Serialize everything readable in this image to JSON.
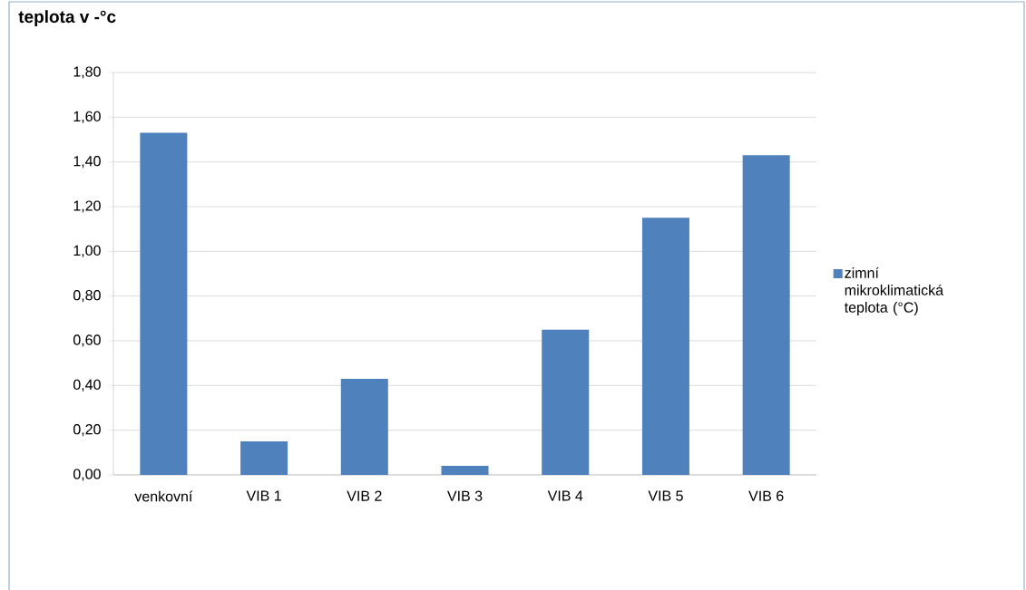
{
  "chart_data": {
    "type": "bar",
    "title": "**teplota v  -°c**",
    "categories": [
      "venkovní",
      "VIB 1",
      "VIB 2",
      "VIB 3",
      "VIB 4",
      "VIB 5",
      "VIB 6"
    ],
    "series": [
      {
        "name": "zimní mikroklimatická teplota (°C)",
        "color": "#4f81bd",
        "values": [
          1.53,
          0.15,
          0.43,
          0.04,
          0.65,
          1.15,
          1.43
        ]
      }
    ],
    "ylim": [
      0,
      1.8
    ],
    "yticks": [
      {
        "value": 0,
        "label": "0,00"
      },
      {
        "value": 0.2,
        "label": "0,20"
      },
      {
        "value": 0.4,
        "label": "0,40"
      },
      {
        "value": 0.6,
        "label": "0,60"
      },
      {
        "value": 0.8,
        "label": "0,80"
      },
      {
        "value": 1.0,
        "label": "1,00"
      },
      {
        "value": 1.2,
        "label": "1,20"
      },
      {
        "value": 1.4,
        "label": "1,40"
      },
      {
        "value": 1.6,
        "label": "1,60"
      },
      {
        "value": 1.8,
        "label": "1,80"
      }
    ],
    "grid": "y",
    "legend": "right"
  }
}
